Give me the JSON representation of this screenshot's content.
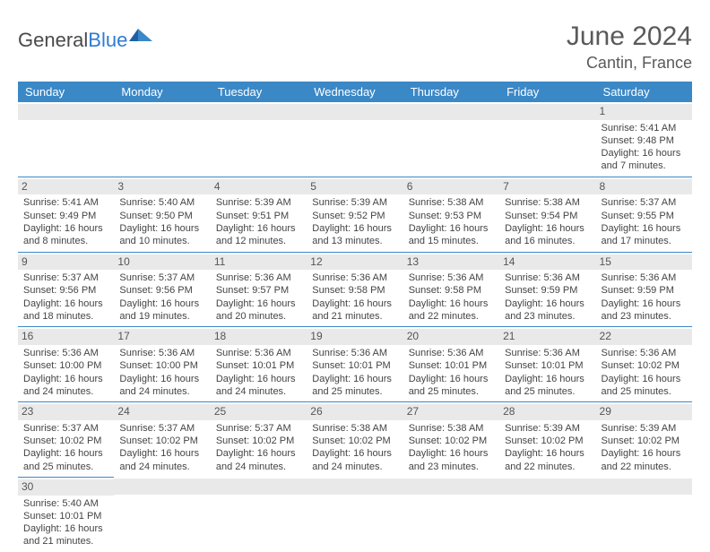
{
  "brand": {
    "word1": "General",
    "word2": "Blue"
  },
  "title": {
    "month": "June 2024",
    "location": "Cantin, France"
  },
  "colors": {
    "header_bg": "#3b88c7",
    "row_border": "#3b88c7",
    "daynum_bg": "#e9e9e9"
  },
  "weekdays": [
    "Sunday",
    "Monday",
    "Tuesday",
    "Wednesday",
    "Thursday",
    "Friday",
    "Saturday"
  ],
  "weeks": [
    [
      {
        "blank": true
      },
      {
        "blank": true
      },
      {
        "blank": true
      },
      {
        "blank": true
      },
      {
        "blank": true
      },
      {
        "blank": true
      },
      {
        "num": "1",
        "sunrise": "Sunrise: 5:41 AM",
        "sunset": "Sunset: 9:48 PM",
        "day1": "Daylight: 16 hours",
        "day2": "and 7 minutes."
      }
    ],
    [
      {
        "num": "2",
        "sunrise": "Sunrise: 5:41 AM",
        "sunset": "Sunset: 9:49 PM",
        "day1": "Daylight: 16 hours",
        "day2": "and 8 minutes."
      },
      {
        "num": "3",
        "sunrise": "Sunrise: 5:40 AM",
        "sunset": "Sunset: 9:50 PM",
        "day1": "Daylight: 16 hours",
        "day2": "and 10 minutes."
      },
      {
        "num": "4",
        "sunrise": "Sunrise: 5:39 AM",
        "sunset": "Sunset: 9:51 PM",
        "day1": "Daylight: 16 hours",
        "day2": "and 12 minutes."
      },
      {
        "num": "5",
        "sunrise": "Sunrise: 5:39 AM",
        "sunset": "Sunset: 9:52 PM",
        "day1": "Daylight: 16 hours",
        "day2": "and 13 minutes."
      },
      {
        "num": "6",
        "sunrise": "Sunrise: 5:38 AM",
        "sunset": "Sunset: 9:53 PM",
        "day1": "Daylight: 16 hours",
        "day2": "and 15 minutes."
      },
      {
        "num": "7",
        "sunrise": "Sunrise: 5:38 AM",
        "sunset": "Sunset: 9:54 PM",
        "day1": "Daylight: 16 hours",
        "day2": "and 16 minutes."
      },
      {
        "num": "8",
        "sunrise": "Sunrise: 5:37 AM",
        "sunset": "Sunset: 9:55 PM",
        "day1": "Daylight: 16 hours",
        "day2": "and 17 minutes."
      }
    ],
    [
      {
        "num": "9",
        "sunrise": "Sunrise: 5:37 AM",
        "sunset": "Sunset: 9:56 PM",
        "day1": "Daylight: 16 hours",
        "day2": "and 18 minutes."
      },
      {
        "num": "10",
        "sunrise": "Sunrise: 5:37 AM",
        "sunset": "Sunset: 9:56 PM",
        "day1": "Daylight: 16 hours",
        "day2": "and 19 minutes."
      },
      {
        "num": "11",
        "sunrise": "Sunrise: 5:36 AM",
        "sunset": "Sunset: 9:57 PM",
        "day1": "Daylight: 16 hours",
        "day2": "and 20 minutes."
      },
      {
        "num": "12",
        "sunrise": "Sunrise: 5:36 AM",
        "sunset": "Sunset: 9:58 PM",
        "day1": "Daylight: 16 hours",
        "day2": "and 21 minutes."
      },
      {
        "num": "13",
        "sunrise": "Sunrise: 5:36 AM",
        "sunset": "Sunset: 9:58 PM",
        "day1": "Daylight: 16 hours",
        "day2": "and 22 minutes."
      },
      {
        "num": "14",
        "sunrise": "Sunrise: 5:36 AM",
        "sunset": "Sunset: 9:59 PM",
        "day1": "Daylight: 16 hours",
        "day2": "and 23 minutes."
      },
      {
        "num": "15",
        "sunrise": "Sunrise: 5:36 AM",
        "sunset": "Sunset: 9:59 PM",
        "day1": "Daylight: 16 hours",
        "day2": "and 23 minutes."
      }
    ],
    [
      {
        "num": "16",
        "sunrise": "Sunrise: 5:36 AM",
        "sunset": "Sunset: 10:00 PM",
        "day1": "Daylight: 16 hours",
        "day2": "and 24 minutes."
      },
      {
        "num": "17",
        "sunrise": "Sunrise: 5:36 AM",
        "sunset": "Sunset: 10:00 PM",
        "day1": "Daylight: 16 hours",
        "day2": "and 24 minutes."
      },
      {
        "num": "18",
        "sunrise": "Sunrise: 5:36 AM",
        "sunset": "Sunset: 10:01 PM",
        "day1": "Daylight: 16 hours",
        "day2": "and 24 minutes."
      },
      {
        "num": "19",
        "sunrise": "Sunrise: 5:36 AM",
        "sunset": "Sunset: 10:01 PM",
        "day1": "Daylight: 16 hours",
        "day2": "and 25 minutes."
      },
      {
        "num": "20",
        "sunrise": "Sunrise: 5:36 AM",
        "sunset": "Sunset: 10:01 PM",
        "day1": "Daylight: 16 hours",
        "day2": "and 25 minutes."
      },
      {
        "num": "21",
        "sunrise": "Sunrise: 5:36 AM",
        "sunset": "Sunset: 10:01 PM",
        "day1": "Daylight: 16 hours",
        "day2": "and 25 minutes."
      },
      {
        "num": "22",
        "sunrise": "Sunrise: 5:36 AM",
        "sunset": "Sunset: 10:02 PM",
        "day1": "Daylight: 16 hours",
        "day2": "and 25 minutes."
      }
    ],
    [
      {
        "num": "23",
        "sunrise": "Sunrise: 5:37 AM",
        "sunset": "Sunset: 10:02 PM",
        "day1": "Daylight: 16 hours",
        "day2": "and 25 minutes."
      },
      {
        "num": "24",
        "sunrise": "Sunrise: 5:37 AM",
        "sunset": "Sunset: 10:02 PM",
        "day1": "Daylight: 16 hours",
        "day2": "and 24 minutes."
      },
      {
        "num": "25",
        "sunrise": "Sunrise: 5:37 AM",
        "sunset": "Sunset: 10:02 PM",
        "day1": "Daylight: 16 hours",
        "day2": "and 24 minutes."
      },
      {
        "num": "26",
        "sunrise": "Sunrise: 5:38 AM",
        "sunset": "Sunset: 10:02 PM",
        "day1": "Daylight: 16 hours",
        "day2": "and 24 minutes."
      },
      {
        "num": "27",
        "sunrise": "Sunrise: 5:38 AM",
        "sunset": "Sunset: 10:02 PM",
        "day1": "Daylight: 16 hours",
        "day2": "and 23 minutes."
      },
      {
        "num": "28",
        "sunrise": "Sunrise: 5:39 AM",
        "sunset": "Sunset: 10:02 PM",
        "day1": "Daylight: 16 hours",
        "day2": "and 22 minutes."
      },
      {
        "num": "29",
        "sunrise": "Sunrise: 5:39 AM",
        "sunset": "Sunset: 10:02 PM",
        "day1": "Daylight: 16 hours",
        "day2": "and 22 minutes."
      }
    ],
    [
      {
        "num": "30",
        "sunrise": "Sunrise: 5:40 AM",
        "sunset": "Sunset: 10:01 PM",
        "day1": "Daylight: 16 hours",
        "day2": "and 21 minutes."
      },
      {
        "blank": true
      },
      {
        "blank": true
      },
      {
        "blank": true
      },
      {
        "blank": true
      },
      {
        "blank": true
      },
      {
        "blank": true
      }
    ]
  ]
}
